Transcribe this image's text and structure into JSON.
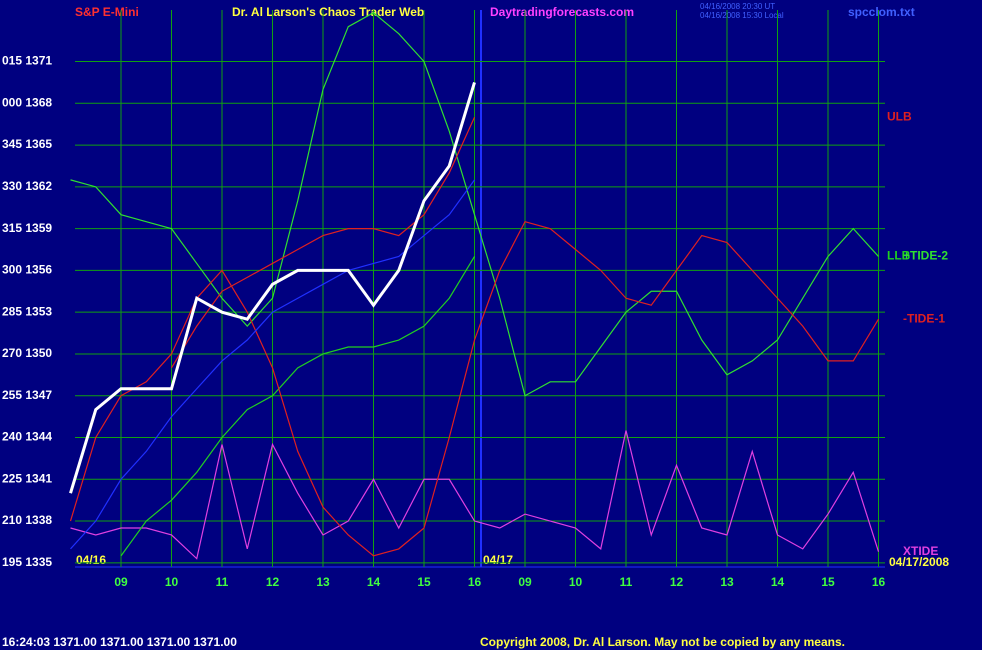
{
  "chart_data": {
    "type": "line",
    "title": "Dr. Al Larson's Chaos Trader Web",
    "annotations": [
      "S&P E-Mini",
      "Daytradingforecasts.com",
      "04/16/2008 20:30 UT",
      "04/16/2008 15:30 Local",
      "spcclom.txt",
      "04/16",
      "04/17",
      "04/17/2008",
      "16:24:03  1371.00 1371.00 1371.00 1371.00",
      "Copyright 2008, Dr. Al Larson. May not be copied by any means."
    ],
    "categories": [
      null,
      null,
      "09",
      null,
      "10",
      null,
      "11",
      null,
      "12",
      null,
      "13",
      null,
      "14",
      null,
      "15",
      null,
      "16",
      null,
      "09",
      null,
      "10",
      null,
      "11",
      null,
      "12",
      null,
      "13",
      null,
      "14",
      null,
      "15",
      null,
      "16"
    ],
    "ylim": [
      1334.7,
      1374.7
    ],
    "yticks": [
      {
        "value": 1335,
        "label": "195 1335"
      },
      {
        "value": 1338,
        "label": "210 1338"
      },
      {
        "value": 1341,
        "label": "225 1341"
      },
      {
        "value": 1344,
        "label": "240 1344"
      },
      {
        "value": 1347,
        "label": "255 1347"
      },
      {
        "value": 1350,
        "label": "270 1350"
      },
      {
        "value": 1353,
        "label": "285 1353"
      },
      {
        "value": 1356,
        "label": "300 1356"
      },
      {
        "value": 1359,
        "label": "315 1359"
      },
      {
        "value": 1362,
        "label": "330 1362"
      },
      {
        "value": 1365,
        "label": "345 1365"
      },
      {
        "value": 1368,
        "label": "000 1368"
      },
      {
        "value": 1371,
        "label": "015 1371"
      }
    ],
    "grid": true,
    "series": [
      {
        "name": "XTIDE",
        "color": "#e040e0",
        "values": [
          1337.5,
          1337,
          1337.5,
          1337.5,
          1337,
          1335.3,
          1343.5,
          1336,
          1343.5,
          1340,
          1337,
          1338,
          1341,
          1337.5,
          1341,
          1341,
          1338,
          1337.5,
          1338.5,
          1338,
          1337.5,
          1336,
          1344.5,
          1337,
          1342,
          1337.5,
          1337,
          1343,
          1337,
          1336,
          1338.5,
          1341.5,
          1335.8
        ]
      },
      {
        "name": "LLB",
        "color": "#20d020",
        "values": [
          null,
          null,
          1335.5,
          1338,
          1339.5,
          1341.5,
          1344,
          1346,
          1347,
          1349,
          1350,
          1350.5,
          1350.5,
          1351,
          1352,
          1354,
          1357,
          null,
          null,
          null,
          null,
          null,
          null,
          null,
          null,
          null,
          null,
          null,
          null,
          null,
          null,
          null,
          null
        ]
      },
      {
        "name": "+TIDE-2",
        "color": "#30e030",
        "values": [
          1362.5,
          1362,
          1360,
          1359.5,
          1359,
          1356.5,
          1354,
          1352,
          1354,
          1361,
          1369,
          1373.5,
          1374.5,
          1373,
          1371,
          1366,
          1360,
          1354,
          1347,
          1348,
          1348,
          1350.5,
          1353,
          1354.5,
          1354.5,
          1351,
          1348.5,
          1349.5,
          1351,
          1354,
          1357,
          1359,
          1357
        ]
      },
      {
        "name": "-TIDE-1",
        "color": "#e02020",
        "values": [
          1338,
          1344,
          1347,
          1348,
          1350,
          1354,
          1356,
          1353,
          1349,
          1343,
          1339,
          1337,
          1335.5,
          1336,
          1337.5,
          1344,
          1351,
          1356,
          1359.5,
          1359,
          1357.5,
          1356,
          1354,
          1353.5,
          1356,
          1358.5,
          1358,
          1356,
          1354,
          1352,
          1349.5,
          1349.5,
          1352.5
        ]
      },
      {
        "name": "ULB",
        "color": "#e02020",
        "values": [
          null,
          null,
          null,
          null,
          1349,
          1352,
          1354.5,
          1355.5,
          1356.5,
          1357.5,
          1358.5,
          1359,
          1359,
          1358.5,
          1360,
          1363,
          1367,
          null,
          null,
          null,
          null,
          null,
          null,
          null,
          null,
          null,
          null,
          null,
          null,
          null,
          null,
          null,
          null
        ]
      },
      {
        "color": "#2030ff",
        "values": [
          1336,
          1338,
          1341,
          1343,
          1345.5,
          1347.5,
          1349.5,
          1351,
          1353,
          1354,
          1355,
          1356,
          1356.5,
          1357,
          1358.5,
          1360,
          1362.5,
          null,
          null,
          null,
          null,
          null,
          null,
          null,
          null,
          null,
          null,
          null,
          null,
          null,
          null,
          null,
          null
        ]
      },
      {
        "color": "#ffffff",
        "values": [
          1340,
          1346,
          1347.5,
          1347.5,
          1347.5,
          1354,
          1353,
          1352.5,
          1355,
          1356,
          1356,
          1356,
          1353.5,
          1356,
          1361,
          1363.5,
          1369.5,
          null,
          null,
          null,
          null,
          null,
          null,
          null,
          null,
          null,
          null,
          null,
          null,
          null,
          null,
          null,
          null
        ]
      }
    ]
  }
}
